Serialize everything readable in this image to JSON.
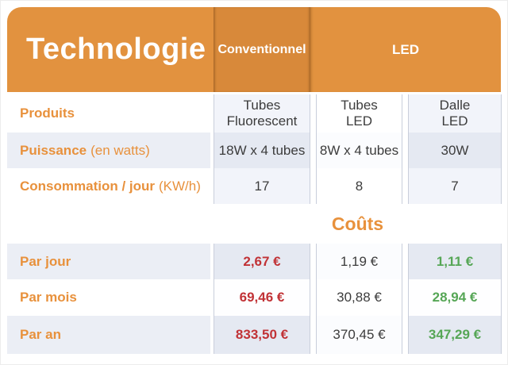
{
  "header": {
    "title": "Technologie",
    "conventionnel": "Conventionnel",
    "led": "LED"
  },
  "spec_rows": [
    {
      "label": "Produits",
      "suffix": "",
      "values": [
        "Tubes\nFluorescent",
        "Tubes\nLED",
        "Dalle\nLED"
      ]
    },
    {
      "label": "Puissance",
      "suffix": "(en watts)",
      "values": [
        "18W x 4 tubes",
        "8W x 4 tubes",
        "30W"
      ]
    },
    {
      "label": "Consommation / jour",
      "suffix": "(KW/h)",
      "values": [
        "17",
        "8",
        "7"
      ]
    }
  ],
  "costs": {
    "title": "Coûts",
    "rows": [
      {
        "label": "Par jour",
        "values": [
          "2,67 €",
          "1,19 €",
          "1,11 €"
        ]
      },
      {
        "label": "Par mois",
        "values": [
          "69,46 €",
          "30,88 €",
          "28,94 €"
        ]
      },
      {
        "label": "Par an",
        "values": [
          "833,50 €",
          "370,45 €",
          "347,29 €"
        ]
      }
    ]
  },
  "palette": {
    "orange": "#E2923F",
    "orange_dark": "#D8893A",
    "orange_text": "#E8913C",
    "red": "#C13236",
    "green": "#56A656",
    "text_dark": "#3C3C3C",
    "row_stripe": "#EBEEF5"
  },
  "chart_data": {
    "type": "table",
    "title": "Technologie",
    "column_groups": [
      {
        "label": "Conventionnel",
        "columns": [
          "Tubes Fluorescent"
        ]
      },
      {
        "label": "LED",
        "columns": [
          "Tubes LED",
          "Dalle LED"
        ]
      }
    ],
    "rows": [
      {
        "label": "Produits",
        "values": [
          "Tubes Fluorescent",
          "Tubes LED",
          "Dalle LED"
        ]
      },
      {
        "label": "Puissance (en watts)",
        "values": [
          "18W x 4 tubes",
          "8W x 4 tubes",
          "30W"
        ]
      },
      {
        "label": "Consommation / jour (KW/h)",
        "values": [
          17,
          8,
          7
        ]
      },
      {
        "label": "Coûts - Par jour (EUR)",
        "values": [
          2.67,
          1.19,
          1.11
        ]
      },
      {
        "label": "Coûts - Par mois (EUR)",
        "values": [
          69.46,
          30.88,
          28.94
        ]
      },
      {
        "label": "Coûts - Par an (EUR)",
        "values": [
          833.5,
          370.45,
          347.29
        ]
      }
    ],
    "value_color_coding": {
      "conventionnel": "red (most expensive)",
      "tubes_led": "neutral dark",
      "dalle_led": "green (cheapest)"
    }
  }
}
